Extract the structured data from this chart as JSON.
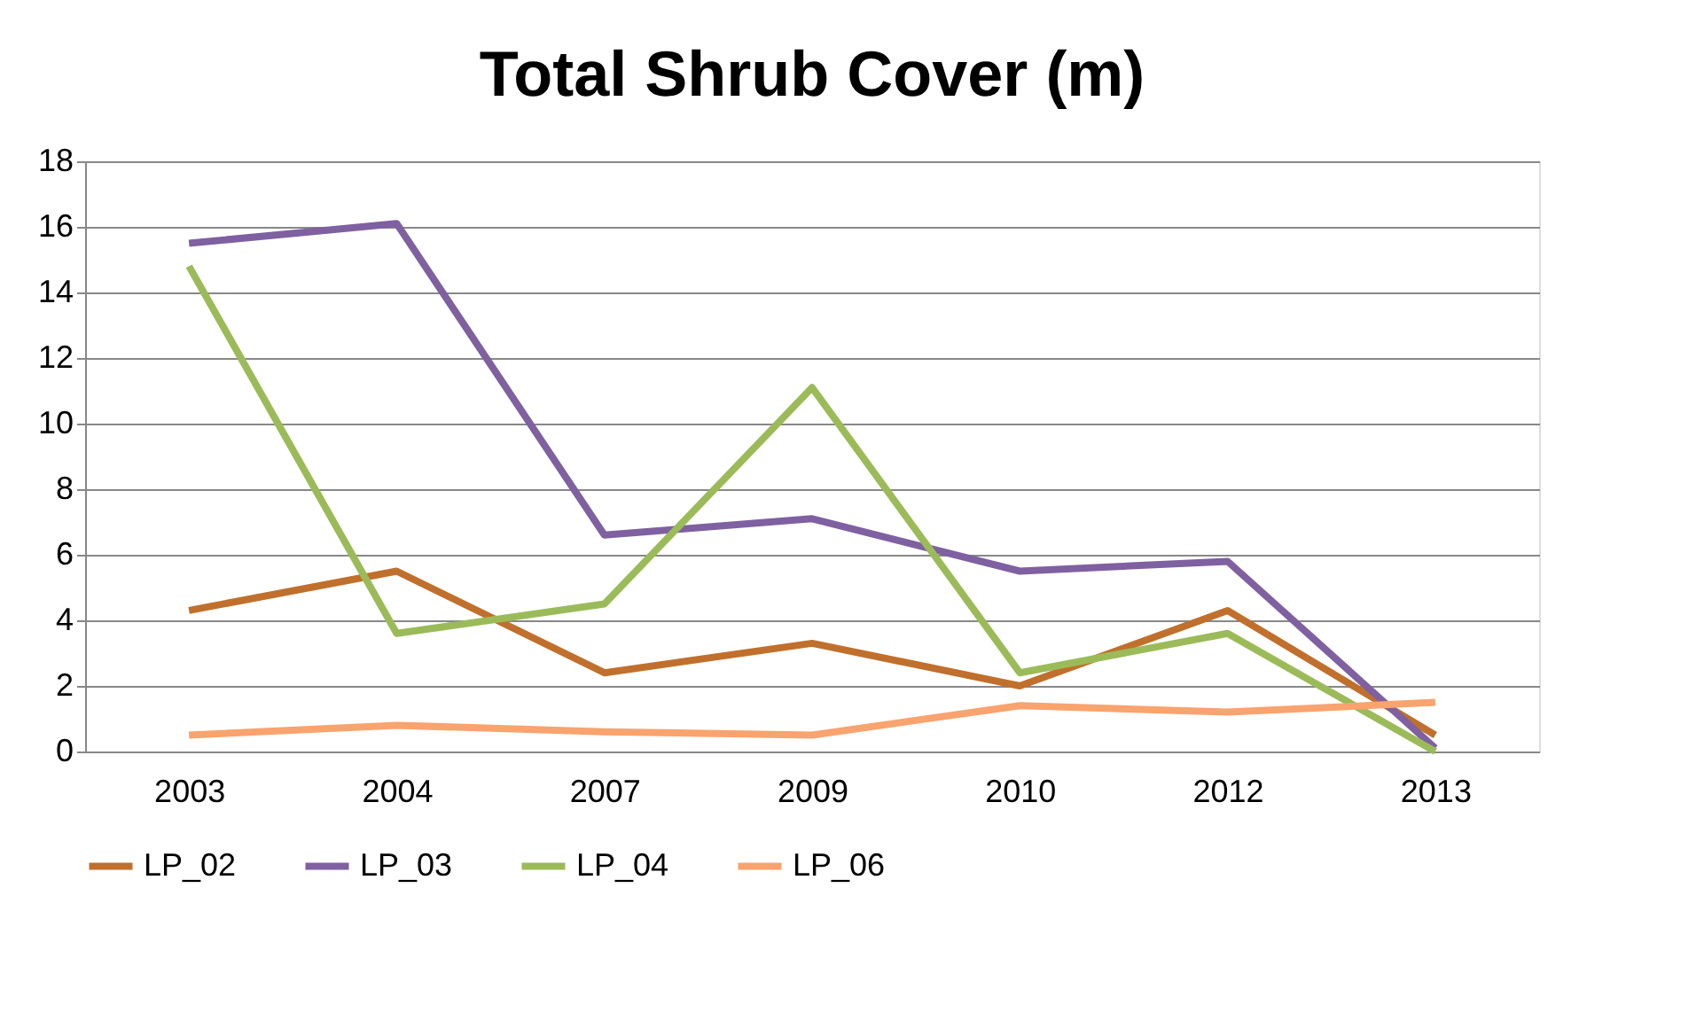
{
  "chart_data": {
    "type": "line",
    "title": "Total Shrub Cover (m)",
    "categories": [
      "2003",
      "2004",
      "2007",
      "2009",
      "2010",
      "2012",
      "2013"
    ],
    "series": [
      {
        "name": "LP_02",
        "color": "#c0702c",
        "values": [
          4.3,
          5.5,
          2.4,
          3.3,
          2.0,
          4.3,
          0.5
        ]
      },
      {
        "name": "LP_03",
        "color": "#7f60a0",
        "values": [
          15.5,
          16.1,
          6.6,
          7.1,
          5.5,
          5.8,
          0.1
        ]
      },
      {
        "name": "LP_04",
        "color": "#9bbb59",
        "values": [
          14.8,
          3.6,
          4.5,
          11.1,
          2.4,
          3.6,
          0
        ]
      },
      {
        "name": "LP_06",
        "color": "#f9a36f",
        "values": [
          0.5,
          0.8,
          0.6,
          0.5,
          1.4,
          1.2,
          1.5
        ]
      }
    ],
    "ylim": [
      0,
      18
    ],
    "yticks": [
      0,
      2,
      4,
      6,
      8,
      10,
      12,
      14,
      16,
      18
    ],
    "grid": "y",
    "legend": "bottom",
    "marker": "none",
    "line_style": "solid"
  }
}
